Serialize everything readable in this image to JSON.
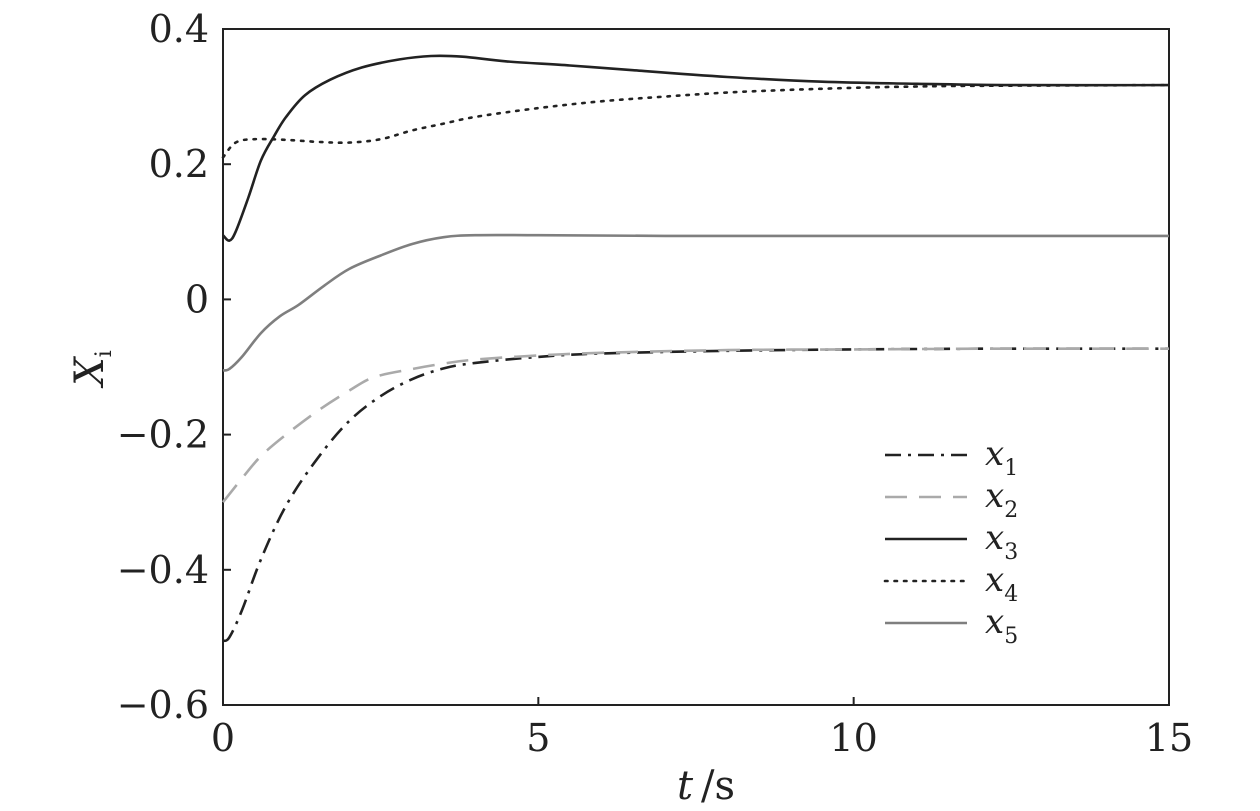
{
  "chart_data": {
    "type": "line",
    "title": "",
    "xlabel": {
      "var": "t",
      "unit": "/s"
    },
    "ylabel": {
      "var": "X",
      "sub": "i"
    },
    "xlim": [
      0,
      15
    ],
    "ylim": [
      -0.6,
      0.4
    ],
    "xticks": [
      0,
      5,
      10,
      15
    ],
    "xtick_labels": [
      "0",
      "5",
      "10",
      "15"
    ],
    "yticks": [
      -0.6,
      -0.4,
      -0.2,
      0,
      0.2,
      0.4
    ],
    "ytick_labels": [
      "−0.6",
      "−0.4",
      "−0.2",
      "0",
      "0.2",
      "0.4"
    ],
    "grid": false,
    "legend_position": "lower-right",
    "series": [
      {
        "name": "x",
        "sub": "1",
        "color": "#222222",
        "dash": "dashdot",
        "x": [
          0,
          0.1,
          0.3,
          0.6,
          1.0,
          1.5,
          2.0,
          2.5,
          3.0,
          3.5,
          4.0,
          5.0,
          6.0,
          8.0,
          10.0,
          12.0,
          15.0
        ],
        "y": [
          -0.505,
          -0.5,
          -0.46,
          -0.385,
          -0.305,
          -0.235,
          -0.18,
          -0.143,
          -0.118,
          -0.102,
          -0.094,
          -0.085,
          -0.08,
          -0.076,
          -0.074,
          -0.073,
          -0.073
        ]
      },
      {
        "name": "x",
        "sub": "2",
        "color": "#aaaaaa",
        "dash": "dashed",
        "x": [
          0,
          0.3,
          0.6,
          1.0,
          1.5,
          2.0,
          2.4,
          3.0,
          3.5,
          4.0,
          5.0,
          6.0,
          8.0,
          10.0,
          12.0,
          15.0
        ],
        "y": [
          -0.3,
          -0.265,
          -0.232,
          -0.2,
          -0.165,
          -0.135,
          -0.115,
          -0.103,
          -0.095,
          -0.089,
          -0.083,
          -0.079,
          -0.075,
          -0.074,
          -0.073,
          -0.073
        ]
      },
      {
        "name": "x",
        "sub": "3",
        "color": "#222222",
        "dash": "solid",
        "x": [
          0,
          0.1,
          0.2,
          0.4,
          0.6,
          0.8,
          1.0,
          1.3,
          1.7,
          2.2,
          2.8,
          3.3,
          3.8,
          4.5,
          5.5,
          6.5,
          8.0,
          9.5,
          11.0,
          12.5,
          15.0
        ],
        "y": [
          0.095,
          0.087,
          0.1,
          0.15,
          0.205,
          0.24,
          0.27,
          0.302,
          0.325,
          0.343,
          0.355,
          0.36,
          0.359,
          0.352,
          0.346,
          0.339,
          0.329,
          0.322,
          0.319,
          0.317,
          0.317
        ]
      },
      {
        "name": "x",
        "sub": "4",
        "color": "#222222",
        "dash": "dotted",
        "x": [
          0,
          0.2,
          0.5,
          1.0,
          1.5,
          2.0,
          2.5,
          3.0,
          3.5,
          4.0,
          5.0,
          6.0,
          7.0,
          8.0,
          9.0,
          10.0,
          11.0,
          12.0,
          15.0
        ],
        "y": [
          0.21,
          0.232,
          0.237,
          0.236,
          0.233,
          0.232,
          0.237,
          0.25,
          0.26,
          0.27,
          0.283,
          0.293,
          0.3,
          0.306,
          0.31,
          0.313,
          0.315,
          0.316,
          0.317
        ]
      },
      {
        "name": "x",
        "sub": "5",
        "color": "#7f7f7f",
        "dash": "solid",
        "x": [
          0,
          0.1,
          0.3,
          0.6,
          0.9,
          1.2,
          1.6,
          2.0,
          2.5,
          3.0,
          3.5,
          4.0,
          5.0,
          7.0,
          10.0,
          15.0
        ],
        "y": [
          -0.105,
          -0.103,
          -0.085,
          -0.05,
          -0.025,
          -0.008,
          0.02,
          0.045,
          0.065,
          0.082,
          0.092,
          0.095,
          0.095,
          0.094,
          0.094,
          0.094
        ]
      }
    ]
  }
}
